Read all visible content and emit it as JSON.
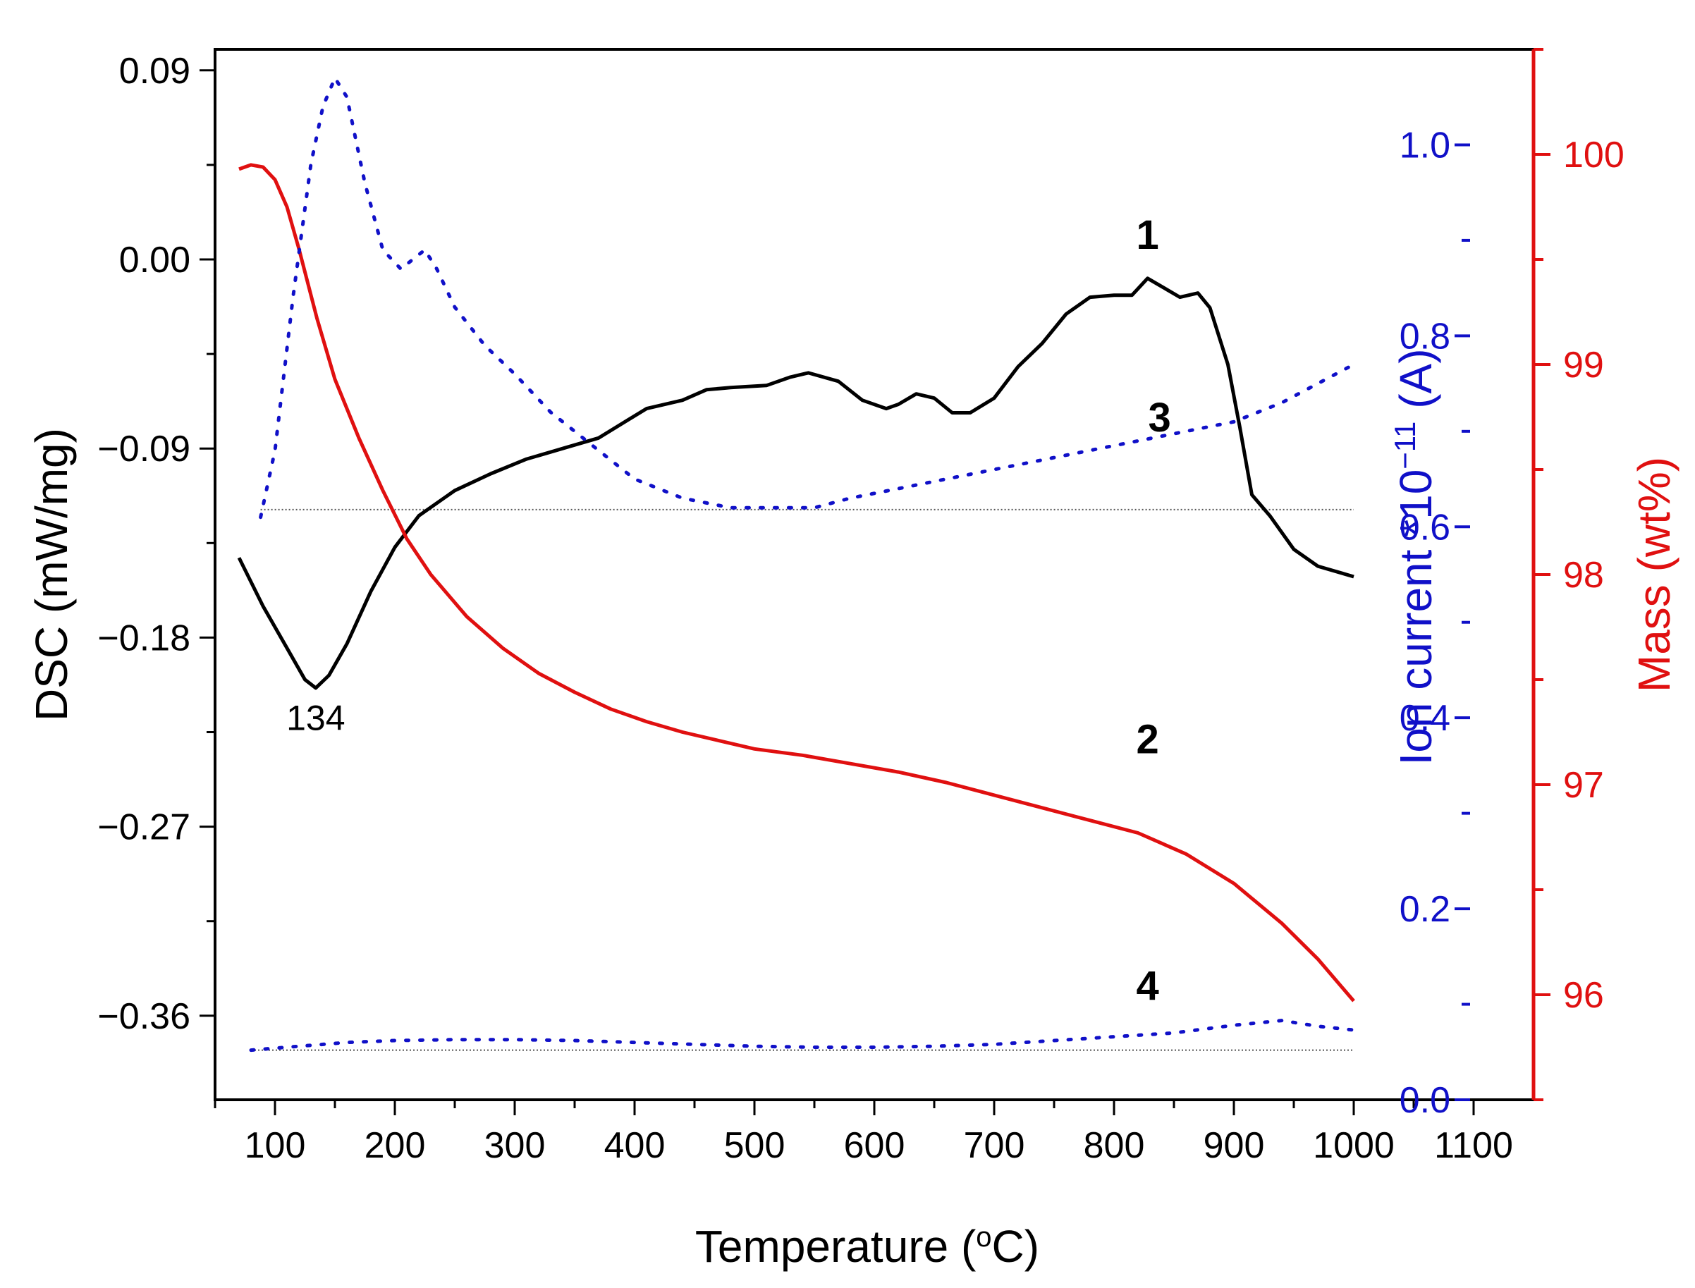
{
  "chart_data": {
    "type": "line",
    "title": "",
    "xlabel": "Temperature (°C)",
    "xlim": [
      50,
      1150
    ],
    "xticks": [
      100,
      200,
      300,
      400,
      500,
      600,
      700,
      800,
      900,
      1000,
      1100
    ],
    "xtick_labels": [
      "100",
      "200",
      "300",
      "400",
      "500",
      "600",
      "700",
      "800",
      "900",
      "1000",
      "1100"
    ],
    "axes": {
      "dsc": {
        "label": "DSC (mW/mg)",
        "range": [
          -0.4,
          0.1
        ],
        "ticks": [
          0.09,
          0.0,
          -0.09,
          -0.18,
          -0.27,
          -0.36
        ],
        "tick_labels": [
          "0.09",
          "0.00",
          "−0.09",
          "−0.18",
          "−0.27",
          "−0.36"
        ],
        "color": "#000000"
      },
      "ion": {
        "label_main": "Ion current *10",
        "label_exp": "−11",
        "label_unit": " (A)",
        "range": [
          0.0,
          1.1
        ],
        "ticks": [
          0.0,
          0.2,
          0.4,
          0.6,
          0.8,
          1.0
        ],
        "tick_labels": [
          "0.0",
          "0.2",
          "0.4",
          "0.6",
          "0.8",
          "1.0"
        ],
        "color": "#1010c8"
      },
      "mass": {
        "label": "Mass (wt%)",
        "range": [
          95.5,
          100.5
        ],
        "ticks": [
          96,
          97,
          98,
          99,
          100
        ],
        "tick_labels": [
          "96",
          "97",
          "98",
          "99",
          "100"
        ],
        "color": "#e01010"
      }
    },
    "series": [
      {
        "name": "1",
        "quantity": "DSC",
        "axis": "dsc",
        "style": "solid",
        "color": "#000000",
        "x": [
          70,
          90,
          110,
          125,
          134,
          145,
          160,
          180,
          200,
          220,
          250,
          280,
          310,
          340,
          370,
          390,
          410,
          440,
          460,
          480,
          510,
          530,
          545,
          570,
          590,
          610,
          620,
          635,
          650,
          665,
          680,
          700,
          720,
          740,
          760,
          780,
          800,
          815,
          828,
          840,
          855,
          870,
          880,
          895,
          905,
          915,
          930,
          950,
          970,
          1000
        ],
        "y": [
          -0.142,
          -0.165,
          -0.185,
          -0.2,
          -0.204,
          -0.198,
          -0.183,
          -0.158,
          -0.137,
          -0.122,
          -0.11,
          -0.102,
          -0.095,
          -0.09,
          -0.085,
          -0.078,
          -0.071,
          -0.067,
          -0.062,
          -0.061,
          -0.06,
          -0.056,
          -0.054,
          -0.058,
          -0.067,
          -0.071,
          -0.069,
          -0.064,
          -0.066,
          -0.073,
          -0.073,
          -0.066,
          -0.051,
          -0.04,
          -0.026,
          -0.018,
          -0.017,
          -0.017,
          -0.009,
          -0.013,
          -0.018,
          -0.016,
          -0.023,
          -0.05,
          -0.08,
          -0.112,
          -0.122,
          -0.138,
          -0.146,
          -0.151
        ]
      },
      {
        "name": "2",
        "quantity": "Mass",
        "axis": "mass",
        "style": "solid",
        "color": "#e01010",
        "x": [
          70,
          80,
          90,
          100,
          110,
          120,
          135,
          150,
          170,
          190,
          210,
          230,
          260,
          290,
          320,
          350,
          380,
          410,
          440,
          470,
          500,
          540,
          580,
          620,
          660,
          700,
          740,
          780,
          820,
          860,
          900,
          940,
          970,
          1000
        ],
        "y": [
          99.93,
          99.95,
          99.94,
          99.88,
          99.75,
          99.55,
          99.22,
          98.93,
          98.65,
          98.4,
          98.17,
          98.0,
          97.8,
          97.65,
          97.53,
          97.44,
          97.36,
          97.3,
          97.25,
          97.21,
          97.17,
          97.14,
          97.1,
          97.06,
          97.01,
          96.95,
          96.89,
          96.83,
          96.77,
          96.67,
          96.53,
          96.34,
          96.17,
          95.97
        ]
      },
      {
        "name": "3",
        "quantity": "Ion current",
        "axis": "ion",
        "style": "dotted",
        "color": "#1010c8",
        "x": [
          88,
          100,
          115,
          130,
          140,
          150,
          160,
          175,
          190,
          205,
          215,
          225,
          235,
          250,
          275,
          300,
          330,
          360,
          400,
          440,
          480,
          520,
          550,
          580,
          620,
          660,
          700,
          740,
          780,
          820,
          860,
          900,
          940,
          970,
          1000
        ],
        "y": [
          0.61,
          0.68,
          0.84,
          0.98,
          1.04,
          1.07,
          1.05,
          0.96,
          0.89,
          0.87,
          0.88,
          0.89,
          0.87,
          0.83,
          0.79,
          0.76,
          0.72,
          0.69,
          0.65,
          0.63,
          0.62,
          0.62,
          0.62,
          0.63,
          0.64,
          0.65,
          0.66,
          0.67,
          0.68,
          0.69,
          0.7,
          0.71,
          0.73,
          0.75,
          0.77
        ]
      },
      {
        "name": "4",
        "quantity": "Ion current",
        "axis": "ion",
        "style": "dotted",
        "color": "#1010c8",
        "x": [
          80,
          120,
          160,
          200,
          250,
          300,
          350,
          400,
          450,
          500,
          550,
          600,
          650,
          700,
          750,
          800,
          850,
          900,
          940,
          970,
          1000
        ],
        "y": [
          0.052,
          0.056,
          0.06,
          0.062,
          0.063,
          0.063,
          0.062,
          0.06,
          0.058,
          0.056,
          0.055,
          0.055,
          0.056,
          0.058,
          0.062,
          0.066,
          0.07,
          0.078,
          0.083,
          0.077,
          0.073
        ]
      }
    ],
    "baselines": [
      {
        "axis": "ion",
        "y": 0.618,
        "x_range": [
          88,
          1000
        ],
        "style": "dotted-thin",
        "color": "#555555"
      },
      {
        "axis": "ion",
        "y": 0.052,
        "x_range": [
          80,
          1000
        ],
        "style": "dotted-thin",
        "color": "#555555"
      }
    ],
    "annotations": [
      {
        "text": "134",
        "x": 134,
        "y": -0.224,
        "axis": "dsc"
      }
    ],
    "curve_labels": [
      {
        "text": "1",
        "x": 828,
        "y": 0.005,
        "axis": "dsc"
      },
      {
        "text": "2",
        "x": 828,
        "y": 97.15,
        "axis": "mass"
      },
      {
        "text": "3",
        "x": 838,
        "y": 0.7,
        "axis": "ion"
      },
      {
        "text": "4",
        "x": 828,
        "y": 0.105,
        "axis": "ion"
      }
    ]
  }
}
